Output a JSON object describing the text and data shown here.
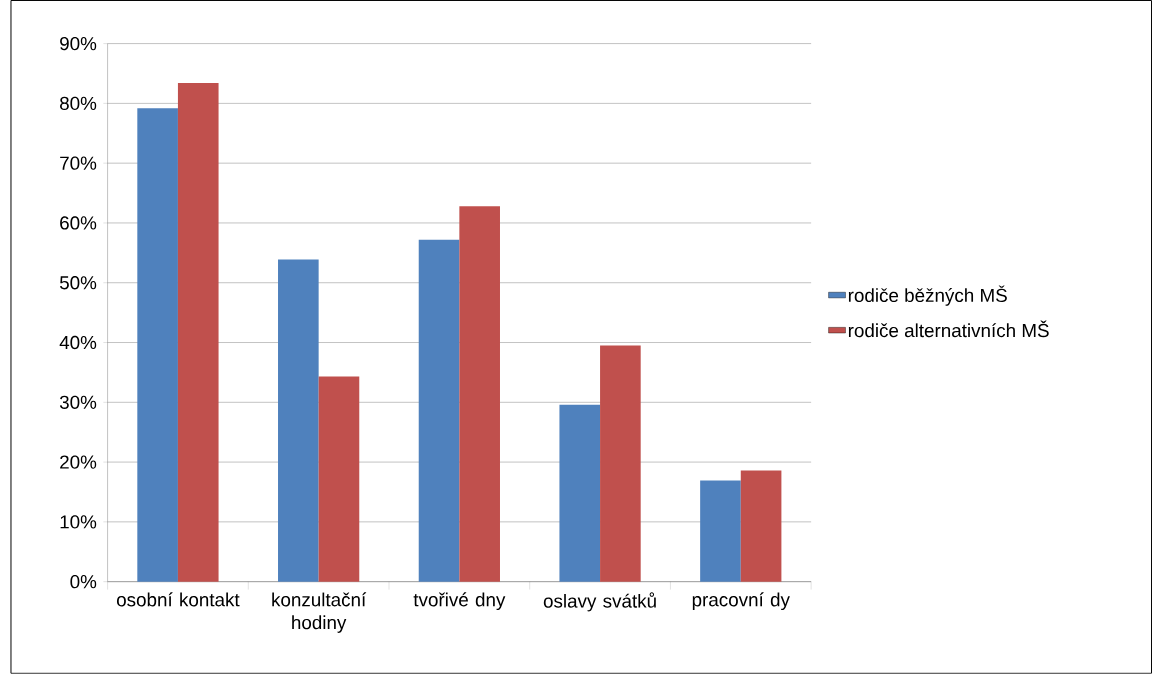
{
  "chart_data": {
    "type": "bar",
    "categories": [
      "osobní kontakt",
      "konzultační hodiny",
      "tvořivé dny",
      "oslavy svátků",
      "pracovní dy"
    ],
    "series": [
      {
        "name": "rodiče běžných MŠ",
        "color": "#4f81bd",
        "values": [
          79.2,
          53.9,
          57.2,
          29.6,
          16.9
        ]
      },
      {
        "name": "rodiče alternativních MŠ",
        "color": "#c0504d",
        "values": [
          83.4,
          34.3,
          62.8,
          39.5,
          18.6
        ]
      }
    ],
    "ylim": [
      0,
      90
    ],
    "yticks": [
      {
        "value": 0,
        "label": "0%"
      },
      {
        "value": 10,
        "label": "10%"
      },
      {
        "value": 20,
        "label": "20%"
      },
      {
        "value": 30,
        "label": "30%"
      },
      {
        "value": 40,
        "label": "40%"
      },
      {
        "value": 50,
        "label": "50%"
      },
      {
        "value": 60,
        "label": "60%"
      },
      {
        "value": 70,
        "label": "70%"
      },
      {
        "value": 80,
        "label": "80%"
      },
      {
        "value": 90,
        "label": "90%"
      }
    ],
    "grid": "y",
    "legend": "right"
  }
}
